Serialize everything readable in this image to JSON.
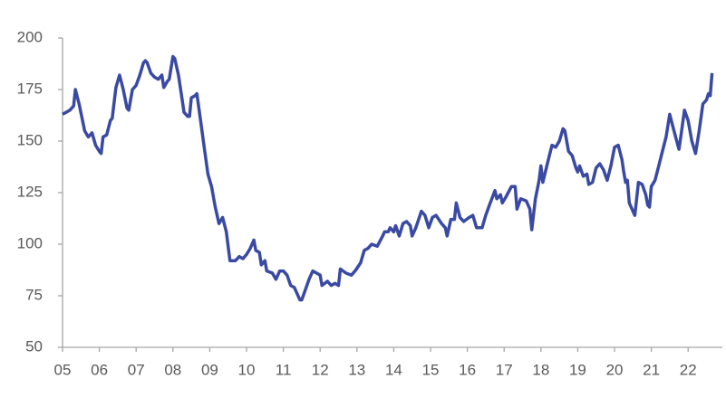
{
  "chart_data": {
    "type": "line",
    "color": "#3a4aa3",
    "xlim": [
      5,
      22.93
    ],
    "xticks": [
      {
        "value": 5,
        "label": "05"
      },
      {
        "value": 6,
        "label": "06"
      },
      {
        "value": 7,
        "label": "07"
      },
      {
        "value": 8,
        "label": "08"
      },
      {
        "value": 9,
        "label": "09"
      },
      10,
      11,
      12,
      13,
      14,
      15,
      16,
      17,
      18,
      19,
      20,
      21,
      22
    ],
    "ylim": [
      50,
      200
    ],
    "yticks": [
      50,
      75,
      100,
      125,
      150,
      175,
      200
    ],
    "grid": false,
    "x": [
      5.0,
      5.2,
      5.3,
      5.35,
      5.45,
      5.6,
      5.7,
      5.8,
      5.9,
      6.0,
      6.05,
      6.1,
      6.2,
      6.3,
      6.35,
      6.45,
      6.55,
      6.65,
      6.75,
      6.8,
      6.9,
      7.0,
      7.1,
      7.2,
      7.25,
      7.3,
      7.4,
      7.5,
      7.6,
      7.7,
      7.75,
      7.85,
      7.9,
      8.0,
      8.05,
      8.15,
      8.25,
      8.3,
      8.4,
      8.45,
      8.5,
      8.6,
      8.65,
      8.75,
      8.85,
      8.95,
      9.05,
      9.15,
      9.25,
      9.35,
      9.45,
      9.55,
      9.7,
      9.8,
      9.9,
      10.0,
      10.1,
      10.2,
      10.25,
      10.35,
      10.4,
      10.5,
      10.55,
      10.7,
      10.8,
      10.9,
      11.0,
      11.1,
      11.2,
      11.3,
      11.45,
      11.5,
      11.6,
      11.7,
      11.8,
      11.9,
      12.0,
      12.05,
      12.2,
      12.3,
      12.4,
      12.5,
      12.55,
      12.7,
      12.85,
      12.95,
      13.1,
      13.2,
      13.3,
      13.4,
      13.55,
      13.7,
      13.75,
      13.85,
      13.9,
      14.0,
      14.05,
      14.15,
      14.25,
      14.35,
      14.45,
      14.5,
      14.6,
      14.75,
      14.85,
      14.95,
      15.05,
      15.15,
      15.3,
      15.4,
      15.45,
      15.55,
      15.65,
      15.7,
      15.8,
      15.9,
      16.05,
      16.15,
      16.25,
      16.4,
      16.5,
      16.6,
      16.75,
      16.8,
      16.9,
      16.95,
      17.05,
      17.2,
      17.3,
      17.35,
      17.45,
      17.6,
      17.7,
      17.75,
      17.85,
      17.95,
      18.0,
      18.05,
      18.2,
      18.3,
      18.4,
      18.5,
      18.6,
      18.65,
      18.75,
      18.85,
      18.95,
      19.0,
      19.05,
      19.15,
      19.25,
      19.3,
      19.4,
      19.5,
      19.6,
      19.7,
      19.8,
      19.9,
      20.0,
      20.1,
      20.2,
      20.25,
      20.3,
      20.35,
      20.4,
      20.5,
      20.55,
      20.65,
      20.75,
      20.85,
      20.9,
      20.95,
      21.0,
      21.1,
      21.2,
      21.3,
      21.4,
      21.5,
      21.6,
      21.75,
      21.8,
      21.9,
      22.0,
      22.1,
      22.2,
      22.3,
      22.4,
      22.5,
      22.55,
      22.6,
      22.65
    ],
    "values": [
      163,
      165,
      167,
      175,
      168,
      155,
      152,
      154,
      148,
      145,
      144,
      152,
      153,
      160,
      161,
      176,
      182,
      175,
      166,
      165,
      175,
      177,
      182,
      188,
      189,
      188,
      183,
      181,
      180,
      182,
      176,
      179,
      180,
      191,
      190,
      182,
      170,
      164,
      162,
      162,
      171,
      172,
      173,
      160,
      147,
      134,
      128,
      118,
      110,
      113,
      106,
      92,
      92,
      94,
      93,
      95,
      98,
      102,
      97,
      96,
      90,
      92,
      87,
      86,
      83,
      87,
      87,
      85,
      80,
      79,
      73,
      73,
      78,
      83,
      87,
      86,
      85,
      80,
      82,
      80,
      81,
      80,
      88,
      86,
      85,
      87,
      91,
      97,
      98,
      100,
      99,
      104,
      106,
      106,
      108,
      106,
      109,
      104,
      110,
      111,
      109,
      104,
      108,
      116,
      114,
      108,
      113,
      114,
      110,
      108,
      104,
      112,
      112,
      120,
      113,
      111,
      113,
      114,
      108,
      108,
      114,
      119,
      126,
      122,
      124,
      120,
      123,
      128,
      128,
      117,
      122,
      121,
      117,
      107,
      122,
      131,
      138,
      130,
      141,
      148,
      147,
      150,
      156,
      155,
      145,
      143,
      137,
      135,
      138,
      133,
      134,
      129,
      130,
      137,
      139,
      136,
      131,
      138,
      147,
      148,
      141,
      135,
      130,
      131,
      120,
      116,
      114,
      130,
      129,
      124,
      119,
      118,
      128,
      131,
      138,
      145,
      152,
      163,
      156,
      146,
      152,
      165,
      160,
      150,
      144,
      155,
      168,
      170,
      173,
      172,
      183
    ]
  }
}
